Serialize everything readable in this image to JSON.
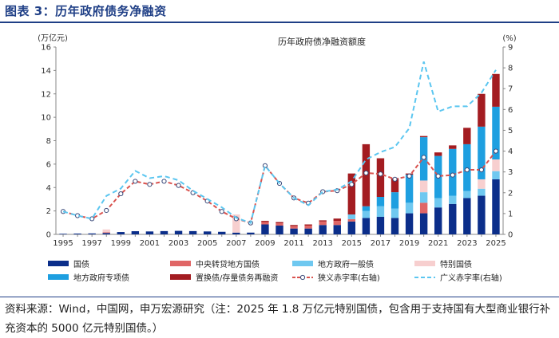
{
  "figure": {
    "title": "图表 3：历年政府债务净融资",
    "source_note": "资料来源：Wind，中国网，申万宏源研究（注：2025 年 1.8 万亿元特别国债，包含用于支持国有大型商业银行补充资本的 5000 亿元特别国债。）"
  },
  "chart_data": {
    "type": "bar",
    "stacked": true,
    "title": "历年政府债净融资额度",
    "ylabel_left": "(万亿元)",
    "ylabel_right": "(%)",
    "ylim_left": [
      0,
      16
    ],
    "ylim_right": [
      0,
      9
    ],
    "yticks_left": [
      0,
      2,
      4,
      6,
      8,
      10,
      12,
      14,
      16
    ],
    "yticks_right": [
      0,
      1,
      2,
      3,
      4,
      5,
      6,
      7,
      8,
      9
    ],
    "categories": [
      "1995",
      "1996",
      "1997",
      "1998",
      "1999",
      "2000",
      "2001",
      "2002",
      "2003",
      "2004",
      "2005",
      "2006",
      "2007",
      "2008",
      "2009",
      "2010",
      "2011",
      "2012",
      "2013",
      "2014",
      "2015",
      "2016",
      "2017",
      "2018",
      "2019",
      "2020",
      "2021",
      "2022",
      "2023",
      "2024",
      "2025"
    ],
    "xtick_labels": [
      "1995",
      "1997",
      "1999",
      "2001",
      "2003",
      "2005",
      "2007",
      "2009",
      "2011",
      "2013",
      "2015",
      "2017",
      "2019",
      "2021",
      "2023",
      "2025"
    ],
    "series": [
      {
        "name": "国债",
        "kind": "bar",
        "color": "#0b2e8a",
        "values": [
          0.05,
          0.07,
          0.08,
          0.12,
          0.2,
          0.27,
          0.25,
          0.28,
          0.3,
          0.28,
          0.25,
          0.22,
          0.15,
          0.15,
          0.85,
          0.75,
          0.5,
          0.5,
          0.8,
          0.8,
          1.1,
          1.4,
          1.5,
          1.4,
          1.8,
          1.8,
          2.3,
          2.6,
          3.1,
          3.3,
          4.7
        ]
      },
      {
        "name": "中央转贷地方国债",
        "kind": "bar",
        "color": "#e06666",
        "values": [
          0,
          0,
          0,
          0.05,
          0,
          0,
          0,
          0,
          0,
          0,
          0,
          0,
          0,
          0,
          0.2,
          0.2,
          0.2,
          0.25,
          0.3,
          0.35,
          0.2,
          0,
          0,
          0,
          0,
          0.9,
          0,
          0,
          0,
          0,
          0
        ]
      },
      {
        "name": "地方政府一般债",
        "kind": "bar",
        "color": "#6fc8f0",
        "values": [
          0,
          0,
          0,
          0,
          0,
          0,
          0,
          0,
          0,
          0,
          0,
          0,
          0,
          0,
          0,
          0,
          0,
          0,
          0,
          0,
          0.4,
          0.6,
          0.9,
          0.8,
          0.9,
          0.9,
          0.8,
          0.7,
          0.6,
          0.6,
          0.7
        ]
      },
      {
        "name": "特别国债",
        "kind": "bar",
        "color": "#f7cfcf",
        "values": [
          0,
          0,
          0,
          0.25,
          0,
          0,
          0,
          0,
          0,
          0,
          0,
          0,
          1.55,
          0,
          0,
          0,
          0,
          0,
          0,
          0,
          0,
          0,
          0,
          0,
          0,
          1.0,
          0,
          0,
          0,
          0.8,
          1.0
        ]
      },
      {
        "name": "地方政府专项债",
        "kind": "bar",
        "color": "#1e9fe0",
        "values": [
          0,
          0,
          0,
          0,
          0,
          0,
          0,
          0,
          0,
          0,
          0,
          0,
          0,
          0,
          0,
          0,
          0,
          0,
          0,
          0,
          0,
          0.4,
          0.8,
          1.4,
          2.4,
          3.7,
          3.6,
          4.0,
          4.0,
          4.5,
          4.5
        ]
      },
      {
        "name": "置换债/存量债务再融资",
        "kind": "bar",
        "color": "#a31c21",
        "values": [
          0,
          0,
          0,
          0,
          0,
          0,
          0,
          0,
          0,
          0,
          0,
          0,
          0,
          0,
          0.1,
          0.1,
          0.1,
          0.1,
          0.1,
          0.2,
          3.5,
          5.3,
          3.3,
          1.2,
          0.1,
          0.1,
          0.3,
          0.3,
          1.4,
          2.8,
          2.8
        ]
      },
      {
        "name": "狭义赤字率(右轴)",
        "kind": "line",
        "axis": "right",
        "color": "#d9534f",
        "values": [
          1.1,
          0.9,
          0.75,
          1.15,
          1.95,
          2.55,
          2.4,
          2.55,
          2.35,
          2.0,
          1.6,
          1.1,
          0.75,
          0.55,
          3.3,
          2.45,
          1.75,
          1.5,
          2.05,
          2.1,
          2.4,
          2.95,
          2.9,
          2.65,
          2.8,
          3.7,
          2.8,
          2.85,
          3.1,
          3.1,
          4.0
        ]
      },
      {
        "name": "广义赤字率(右轴)",
        "kind": "line",
        "axis": "right",
        "color": "#5bc6f0",
        "values": [
          1.1,
          0.9,
          0.75,
          1.85,
          2.2,
          3.05,
          2.7,
          2.8,
          2.6,
          2.1,
          1.7,
          1.3,
          0.8,
          0.55,
          3.3,
          2.45,
          1.75,
          1.4,
          2.05,
          2.15,
          2.55,
          3.6,
          3.95,
          4.2,
          5.1,
          8.3,
          5.9,
          6.15,
          6.15,
          6.8,
          7.9
        ]
      }
    ],
    "legend_position": "bottom"
  }
}
